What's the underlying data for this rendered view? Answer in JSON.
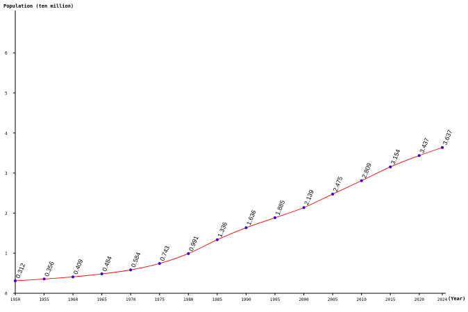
{
  "chart_data": {
    "type": "line",
    "ylabel": "Population (ten million)",
    "xlabel": "(Year)",
    "ylim": [
      0,
      7
    ],
    "y_ticks": [
      "0",
      "1",
      "2",
      "3",
      "4",
      "5",
      "6"
    ],
    "x_ticks": [
      "1950",
      "1955",
      "1960",
      "1965",
      "1970",
      "1975",
      "1980",
      "1985",
      "1990",
      "1995",
      "2000",
      "2005",
      "2010",
      "2015",
      "2020",
      "2024"
    ],
    "grid": false,
    "series": [
      {
        "x": [
          1950,
          1955,
          1960,
          1965,
          1970,
          1975,
          1980,
          1985,
          1990,
          1995,
          2000,
          2005,
          2010,
          2015,
          2020,
          2024
        ],
        "values": [
          0.312,
          0.356,
          0.409,
          0.484,
          0.584,
          0.743,
          0.991,
          1.336,
          1.636,
          1.885,
          2.139,
          2.475,
          2.809,
          3.154,
          3.437,
          3.637
        ],
        "labels": [
          "0.312",
          "0.356",
          "0.409",
          "0.484",
          "0.584",
          "0.743",
          "0.991",
          "1.336",
          "1.636",
          "1.885",
          "2.139",
          "2.475",
          "2.809",
          "3.154",
          "3.437",
          "3.637"
        ],
        "line_color": "#ff0000",
        "marker_color": "#3300cc"
      }
    ]
  }
}
